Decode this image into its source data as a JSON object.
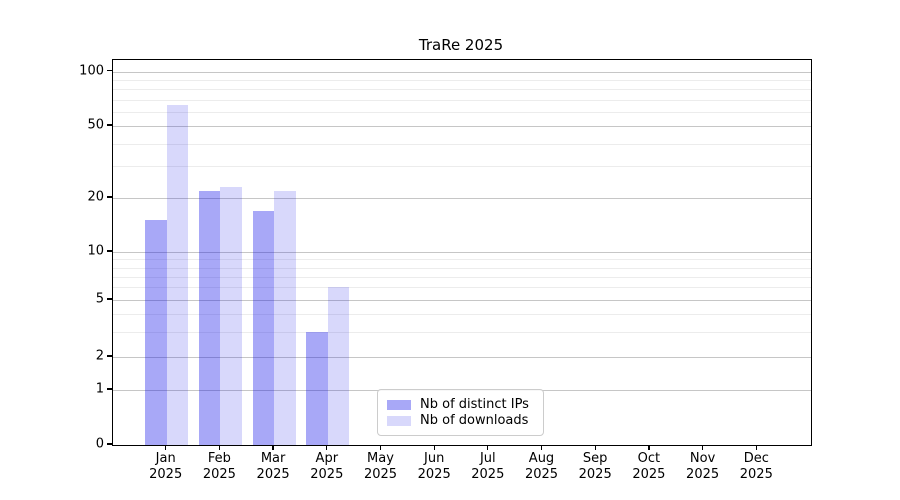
{
  "title": "TraRe 2025",
  "legend": {
    "items": [
      {
        "label": "Nb of distinct IPs",
        "color": "rgba(13,13,232,0.36)",
        "color_hex": "#a8a8f7"
      },
      {
        "label": "Nb of downloads",
        "color": "rgba(13,13,232,0.16)",
        "color_hex": "#d8d8fb"
      }
    ]
  },
  "chart_data": {
    "type": "bar",
    "title": "TraRe 2025",
    "categories": [
      "Jan",
      "Feb",
      "Mar",
      "Apr",
      "May",
      "Jun",
      "Jul",
      "Aug",
      "Sep",
      "Oct",
      "Nov",
      "Dec"
    ],
    "category_year": "2025",
    "series": [
      {
        "name": "Nb of distinct IPs",
        "color": "rgba(13,13,232,0.36)",
        "values": [
          15,
          22,
          17,
          3,
          0,
          0,
          0,
          0,
          0,
          0,
          0,
          0
        ]
      },
      {
        "name": "Nb of downloads",
        "color": "rgba(13,13,232,0.16)",
        "values": [
          65,
          23,
          22,
          6,
          0,
          0,
          0,
          0,
          0,
          0,
          0,
          0
        ]
      }
    ],
    "xlabel": "",
    "ylabel": "",
    "yscale": "symlog",
    "yticks": [
      0,
      1,
      2,
      5,
      10,
      20,
      50,
      100
    ],
    "ylim": [
      0,
      115
    ],
    "grid": true,
    "legend_position": "lower center"
  }
}
